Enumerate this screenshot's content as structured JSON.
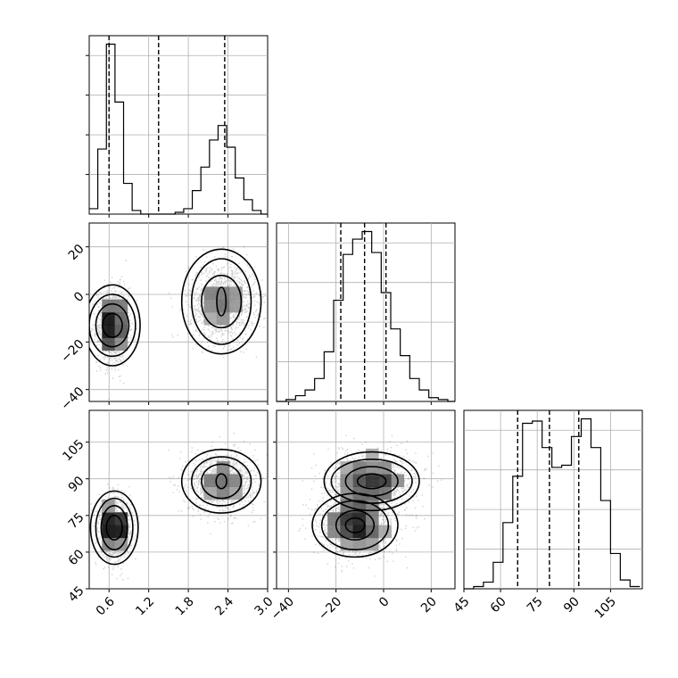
{
  "chart_data": {
    "type": "corner",
    "parameters": [
      "",
      "",
      ""
    ],
    "grid": true,
    "params": {
      "p1": {
        "range": [
          0.3,
          3.0
        ],
        "ticks": [
          "0.6",
          "1.2",
          "1.8",
          "2.4",
          "3.0"
        ],
        "tick_values": [
          0.6,
          1.2,
          1.8,
          2.4,
          3.0
        ]
      },
      "p2": {
        "range": [
          -45,
          30
        ],
        "ticks": [
          "−40",
          "−20",
          "0",
          "20"
        ],
        "tick_values": [
          -40,
          -20,
          0,
          20
        ]
      },
      "p3": {
        "range": [
          45,
          118
        ],
        "ticks": [
          "45",
          "60",
          "75",
          "90",
          "105"
        ],
        "tick_values": [
          45,
          60,
          75,
          90,
          105
        ]
      }
    },
    "histograms": [
      {
        "param": "p1",
        "bins": [
          0.3,
          0.43,
          0.56,
          0.69,
          0.82,
          0.95,
          1.08,
          1.21,
          1.34,
          1.47,
          1.6,
          1.73,
          1.86,
          1.99,
          2.12,
          2.25,
          2.38,
          2.51,
          2.64,
          2.77,
          2.9,
          3.0
        ],
        "counts": [
          0.03,
          0.36,
          0.94,
          0.62,
          0.17,
          0.02,
          0.0,
          0.0,
          0.0,
          0.0,
          0.01,
          0.03,
          0.13,
          0.26,
          0.41,
          0.49,
          0.37,
          0.2,
          0.08,
          0.02,
          0.0
        ],
        "quantiles": [
          0.6,
          1.35,
          2.35
        ]
      },
      {
        "param": "p2",
        "bins": [
          -45,
          -41,
          -37,
          -33,
          -29,
          -25,
          -21,
          -17,
          -13,
          -9,
          -5,
          -1,
          3,
          7,
          11,
          15,
          19,
          23,
          27,
          30
        ],
        "counts": [
          0.0,
          0.01,
          0.03,
          0.06,
          0.12,
          0.26,
          0.53,
          0.77,
          0.85,
          0.89,
          0.78,
          0.57,
          0.38,
          0.24,
          0.12,
          0.06,
          0.02,
          0.01,
          0.0
        ],
        "quantiles": [
          -18,
          -8,
          1
        ]
      },
      {
        "param": "p3",
        "bins": [
          45,
          49,
          53,
          57,
          61,
          65,
          69,
          73,
          77,
          81,
          85,
          89,
          93,
          97,
          101,
          105,
          109,
          113,
          117
        ],
        "counts": [
          0.0,
          0.01,
          0.03,
          0.12,
          0.3,
          0.51,
          0.75,
          0.76,
          0.64,
          0.55,
          0.56,
          0.69,
          0.77,
          0.64,
          0.4,
          0.16,
          0.04,
          0.01
        ],
        "quantiles": [
          67,
          80,
          92
        ]
      }
    ],
    "scatter_2d": [
      {
        "x_param": "p1",
        "y_param": "p2",
        "modes": [
          {
            "center": [
              0.65,
              -13
            ],
            "spread": [
              0.12,
              8
            ],
            "weight": 0.5,
            "contours": [
              [
                0.15,
                5
              ],
              [
                0.25,
                9
              ],
              [
                0.35,
                13
              ],
              [
                0.42,
                17
              ]
            ]
          },
          {
            "center": [
              2.3,
              -3
            ],
            "spread": [
              0.25,
              8
            ],
            "weight": 0.5,
            "contours": [
              [
                0.07,
                6
              ],
              [
                0.3,
                11
              ],
              [
                0.45,
                18
              ],
              [
                0.6,
                22
              ]
            ]
          }
        ]
      },
      {
        "x_param": "p1",
        "y_param": "p3",
        "modes": [
          {
            "center": [
              0.68,
              70
            ],
            "spread": [
              0.12,
              6
            ],
            "weight": 0.5,
            "contours": [
              [
                0.12,
                5
              ],
              [
                0.2,
                9
              ],
              [
                0.28,
                12
              ],
              [
                0.36,
                15
              ]
            ]
          },
          {
            "center": [
              2.3,
              89
            ],
            "spread": [
              0.25,
              6
            ],
            "weight": 0.5,
            "contours": [
              [
                0.08,
                3
              ],
              [
                0.3,
                7
              ],
              [
                0.45,
                10
              ],
              [
                0.6,
                13
              ]
            ]
          }
        ]
      },
      {
        "x_param": "p2",
        "y_param": "p3",
        "modes": [
          {
            "center": [
              -12,
              71
            ],
            "spread": [
              8,
              6
            ],
            "weight": 0.5,
            "contours": [
              [
                4,
                3
              ],
              [
                8,
                6
              ],
              [
                14,
                10
              ],
              [
                18,
                13
              ]
            ]
          },
          {
            "center": [
              -5,
              89
            ],
            "spread": [
              9,
              6
            ],
            "weight": 0.5,
            "contours": [
              [
                6,
                3
              ],
              [
                11,
                6
              ],
              [
                17,
                9
              ],
              [
                20,
                12
              ]
            ]
          }
        ]
      }
    ]
  }
}
